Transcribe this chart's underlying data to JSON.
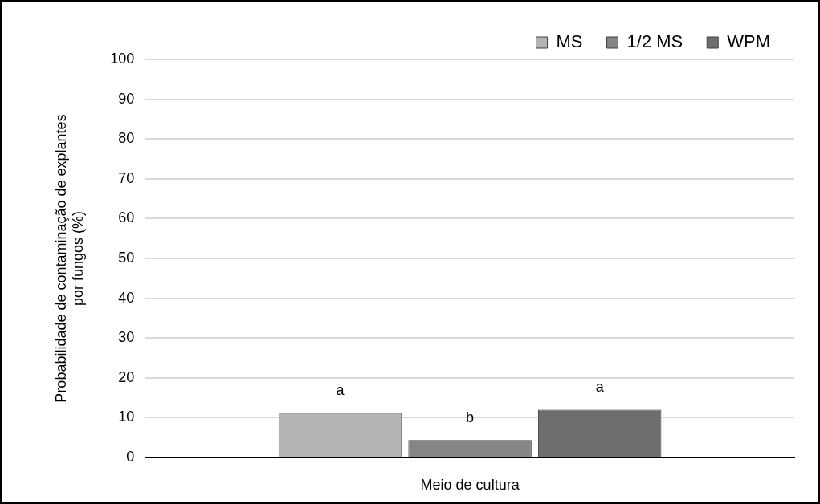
{
  "chart_data": {
    "type": "bar",
    "xlabel": "Meio de cultura",
    "ylabel": "Probabilidade de contaminação de explantes\npor fungos (%)",
    "categories": [
      null
    ],
    "series": [
      {
        "name": "MS",
        "color": "#b4b4b4",
        "values": [
          11.2
        ],
        "value_labels": [
          "a"
        ]
      },
      {
        "name": "1/2 MS",
        "color": "#858585",
        "values": [
          4.4
        ],
        "value_labels": [
          "b"
        ]
      },
      {
        "name": "WPM",
        "color": "#6e6e6e",
        "values": [
          12.0
        ],
        "value_labels": [
          "a"
        ]
      }
    ],
    "ylim": [
      0,
      100
    ],
    "yticks": [
      0,
      10,
      20,
      30,
      40,
      50,
      60,
      70,
      80,
      90,
      100
    ],
    "grid": "y",
    "legend": "top right"
  }
}
